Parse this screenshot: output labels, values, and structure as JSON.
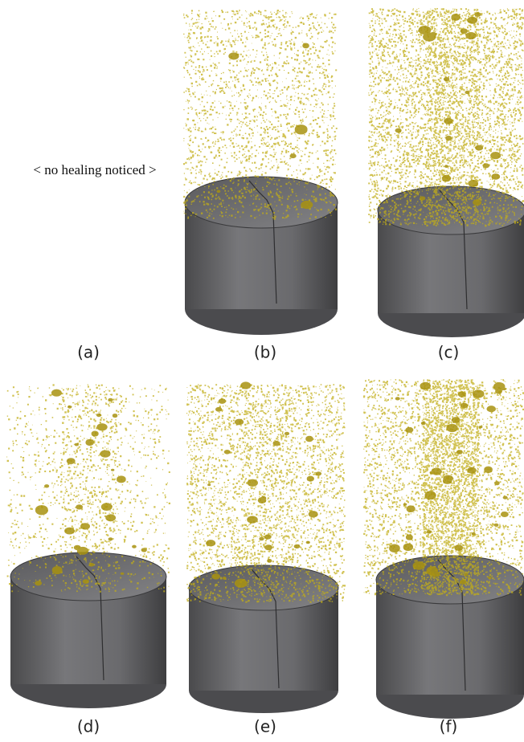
{
  "note": "< no healing noticed >",
  "panels": [
    {
      "label": "(a)"
    },
    {
      "label": "(b)"
    },
    {
      "label": "(c)"
    },
    {
      "label": "(d)"
    },
    {
      "label": "(e)"
    },
    {
      "label": "(f)"
    }
  ]
}
